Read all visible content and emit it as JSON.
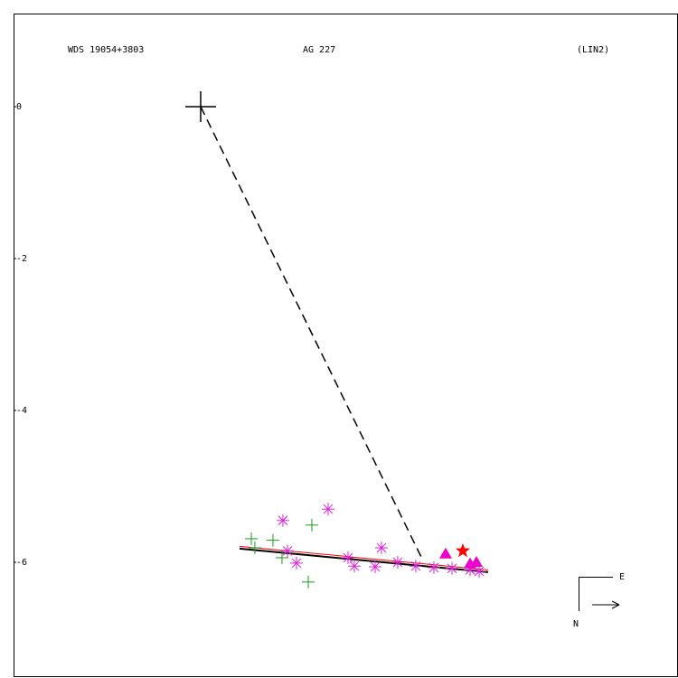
{
  "chart_data": {
    "type": "scatter",
    "header": [
      "WDS 19054+3803",
      "AG  227",
      "(LIN2)"
    ],
    "compass": {
      "east": "E",
      "north": "N"
    },
    "xlim": [
      -2.464,
      6.286
    ],
    "ylim": [
      -7.512,
      1.226
    ],
    "yticks": [
      0,
      -2,
      -4,
      -6
    ],
    "lines": [
      {
        "color": "#000000",
        "dash": true,
        "width": 1.5,
        "x": [
          0,
          2.929
        ],
        "values": [
          0,
          -5.98
        ]
      },
      {
        "color": "#ff0000",
        "dash": false,
        "width": 1,
        "x": [
          0.512,
          3.786
        ],
        "values": [
          -5.79,
          -6.1
        ]
      },
      {
        "color": "#000000",
        "dash": false,
        "width": 2,
        "x": [
          0.512,
          3.786
        ],
        "values": [
          -5.82,
          -6.13
        ]
      }
    ],
    "series": [
      {
        "marker": "cross",
        "color": "#000000",
        "x": [
          0
        ],
        "values": [
          0
        ]
      },
      {
        "marker": "plus",
        "color": "#1a9a1a",
        "x": [
          0.667,
          0.952,
          1.071,
          1.417,
          1.464,
          0.714
        ],
        "values": [
          -5.69,
          -5.71,
          -5.94,
          -6.26,
          -5.51,
          -5.81
        ]
      },
      {
        "marker": "asterisk",
        "color": "#dd22dd",
        "x": [
          1.083,
          1.679,
          1.143,
          1.262,
          1.94,
          2.024,
          2.381,
          2.298,
          2.595,
          2.833,
          3.071,
          3.31,
          3.548,
          3.667
        ],
        "values": [
          -5.45,
          -5.3,
          -5.85,
          -6.01,
          -5.94,
          -6.05,
          -5.81,
          -6.06,
          -6.0,
          -6.05,
          -6.07,
          -6.08,
          -6.1,
          -6.12
        ]
      },
      {
        "marker": "triangle",
        "color": "#ee00cc",
        "x": [
          3.226,
          3.548,
          3.631
        ],
        "values": [
          -5.89,
          -6.02,
          -6.0
        ]
      },
      {
        "marker": "star",
        "color": "#ff0000",
        "x": [
          3.452
        ],
        "values": [
          -5.85
        ]
      }
    ]
  }
}
